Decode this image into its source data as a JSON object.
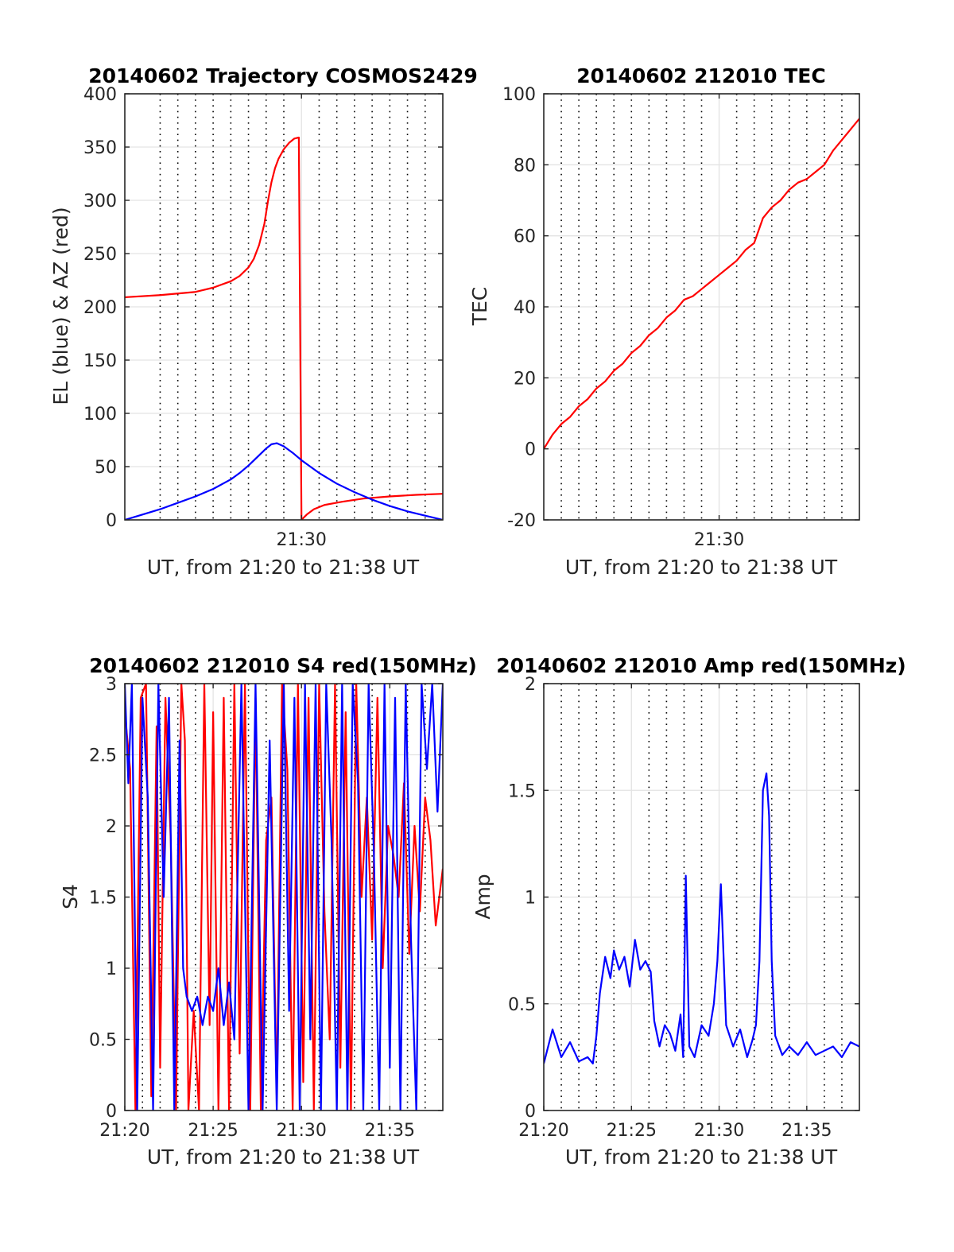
{
  "figure": {
    "background": "#ffffff",
    "colors": {
      "el": "#0000ff",
      "az": "#ff0000",
      "tec": "#ff0000",
      "red": "#ff0000",
      "blue": "#0000ff"
    }
  },
  "chart_data": [
    {
      "id": "trajectory",
      "type": "line",
      "title": "20140602 Trajectory COSMOS2429",
      "xlabel": "UT, from 21:20 to 21:38 UT",
      "ylabel": "EL (blue) & AZ (red)",
      "x_unit": "minutes after 21:20 UT",
      "xlim": [
        0,
        18
      ],
      "ylim": [
        0,
        400
      ],
      "yticks": [
        0,
        50,
        100,
        150,
        200,
        250,
        300,
        350,
        400
      ],
      "xticks": [
        {
          "x": 10,
          "label": "21:30"
        }
      ],
      "minor_dotted_x": [
        2,
        3,
        4,
        5,
        6,
        7,
        8,
        9,
        11,
        12,
        13,
        14,
        15,
        16,
        17
      ],
      "grid": true,
      "series": [
        {
          "key": "az",
          "color": "#ff0000",
          "x": [
            0,
            2,
            4,
            5,
            6,
            6.5,
            7,
            7.3,
            7.6,
            7.9,
            8.1,
            8.3,
            8.5,
            8.7,
            9.0,
            9.3,
            9.6,
            9.85,
            10.0,
            10.3,
            10.7,
            11.3,
            12.3,
            13.5,
            15,
            16.5,
            18
          ],
          "y": [
            209,
            211,
            214,
            218,
            224,
            229,
            237,
            245,
            258,
            278,
            299,
            317,
            330,
            339,
            348,
            354,
            358,
            359,
            0,
            5,
            10,
            14,
            17,
            20,
            22,
            23.5,
            24.5
          ]
        },
        {
          "key": "el",
          "color": "#0000ff",
          "x": [
            0,
            1,
            2,
            3,
            4,
            5,
            6,
            6.5,
            7,
            7.5,
            8,
            8.3,
            8.6,
            9,
            9.5,
            10,
            10.5,
            11,
            12,
            13,
            14,
            15,
            16,
            17,
            18
          ],
          "y": [
            0,
            5,
            10,
            16,
            22,
            29,
            38,
            44,
            51,
            59,
            67,
            71,
            72,
            69,
            63,
            56,
            50,
            44,
            34,
            26,
            19,
            13,
            8,
            4,
            0
          ]
        }
      ]
    },
    {
      "id": "tec",
      "type": "line",
      "title": "20140602 212010 TEC",
      "xlabel": "UT, from 21:20 to 21:38 UT",
      "ylabel": "TEC",
      "x_unit": "minutes after 21:20 UT",
      "xlim": [
        0,
        18
      ],
      "ylim": [
        -20,
        100
      ],
      "yticks": [
        -20,
        0,
        20,
        40,
        60,
        80,
        100
      ],
      "xticks": [
        {
          "x": 10,
          "label": "21:30"
        }
      ],
      "minor_dotted_x": [
        1,
        2,
        3,
        4,
        5,
        6,
        7,
        8,
        9,
        11,
        12,
        13,
        14,
        15,
        16,
        17
      ],
      "grid": true,
      "series": [
        {
          "key": "tec",
          "color": "#ff0000",
          "x": [
            0,
            0.5,
            1,
            1.5,
            2,
            2.5,
            3,
            3.5,
            4,
            4.5,
            5,
            5.5,
            6,
            6.5,
            7,
            7.5,
            8,
            8.5,
            9,
            9.5,
            10,
            10.5,
            11,
            11.5,
            12,
            12.5,
            13,
            13.5,
            14,
            14.5,
            15,
            15.5,
            16,
            16.5,
            17,
            17.5,
            18
          ],
          "y": [
            0,
            4,
            7,
            9,
            12,
            14,
            17,
            19,
            22,
            24,
            27,
            29,
            32,
            34,
            37,
            39,
            42,
            43,
            45,
            47,
            49,
            51,
            53,
            56,
            58,
            65,
            68,
            70,
            73,
            75,
            76,
            78,
            80,
            84,
            87,
            90,
            93
          ]
        }
      ]
    },
    {
      "id": "s4",
      "type": "line",
      "title": "20140602 212010 S4 red(150MHz)",
      "xlabel": "UT, from 21:20 to 21:38 UT",
      "ylabel": "S4",
      "x_unit": "minutes after 21:20 UT",
      "xlim": [
        0,
        18
      ],
      "ylim": [
        0,
        3
      ],
      "yticks": [
        0,
        0.5,
        1,
        1.5,
        2,
        2.5,
        3
      ],
      "xticks": [
        {
          "x": 0,
          "label": "21:20"
        },
        {
          "x": 5,
          "label": "21:25"
        },
        {
          "x": 10,
          "label": "21:30"
        },
        {
          "x": 15,
          "label": "21:35"
        }
      ],
      "minor_dotted_x": [
        1,
        2,
        3,
        4,
        6,
        7,
        8,
        9,
        11,
        12,
        13,
        14,
        16,
        17
      ],
      "grid": true,
      "series": [
        {
          "key": "s4_red",
          "color": "#ff0000",
          "x": [
            0,
            0.3,
            0.6,
            0.9,
            1.2,
            1.5,
            1.8,
            2.0,
            2.3,
            2.6,
            2.9,
            3.2,
            3.4,
            3.6,
            3.9,
            4.2,
            4.5,
            4.8,
            5.0,
            5.3,
            5.6,
            5.9,
            6.2,
            6.5,
            6.8,
            7.1,
            7.4,
            7.7,
            8.0,
            8.3,
            8.6,
            8.9,
            9.2,
            9.5,
            9.8,
            10.1,
            10.4,
            10.7,
            11.0,
            11.3,
            11.6,
            11.9,
            12.2,
            12.5,
            12.8,
            13.1,
            13.4,
            13.7,
            14.0,
            14.3,
            14.6,
            14.9,
            15.2,
            15.5,
            15.8,
            16.1,
            16.4,
            16.7,
            17.0,
            17.3,
            17.6,
            18
          ],
          "y": [
            2.8,
            2.4,
            0.0,
            2.9,
            3.0,
            0.1,
            2.7,
            0.3,
            2.9,
            1.9,
            0.0,
            3.0,
            2.6,
            0.0,
            0.7,
            0.0,
            3.0,
            0.6,
            2.8,
            0.0,
            2.9,
            0.0,
            3.0,
            0.4,
            3.0,
            0.0,
            2.9,
            0.0,
            1.9,
            2.2,
            0.1,
            3.0,
            2.4,
            0.0,
            3.0,
            0.2,
            2.9,
            0.0,
            3.0,
            1.4,
            0.5,
            3.0,
            0.3,
            2.8,
            0.0,
            3.0,
            1.5,
            2.2,
            1.2,
            2.9,
            1.0,
            2.0,
            1.8,
            1.5,
            2.3,
            1.1,
            2.0,
            1.4,
            2.2,
            1.9,
            1.3,
            1.7
          ]
        },
        {
          "key": "s4_blue",
          "color": "#0000ff",
          "x": [
            0,
            0.2,
            0.4,
            0.7,
            1.0,
            1.3,
            1.6,
            1.9,
            2.2,
            2.5,
            2.8,
            3.1,
            3.3,
            3.5,
            3.8,
            4.1,
            4.4,
            4.7,
            5.0,
            5.3,
            5.6,
            5.9,
            6.2,
            6.6,
            7.0,
            7.4,
            7.8,
            8.2,
            8.6,
            9.0,
            9.3,
            9.6,
            9.9,
            10.2,
            10.5,
            10.8,
            11.1,
            11.4,
            11.7,
            12.0,
            12.3,
            12.6,
            12.9,
            13.2,
            13.5,
            13.8,
            14.1,
            14.4,
            14.7,
            15.0,
            15.3,
            15.6,
            15.9,
            16.2,
            16.5,
            16.8,
            17.1,
            17.4,
            17.7,
            18
          ],
          "y": [
            3.0,
            2.3,
            3.0,
            0.0,
            2.9,
            2.2,
            0.0,
            3.0,
            1.5,
            2.9,
            0.0,
            2.6,
            1.0,
            0.8,
            0.7,
            0.8,
            0.6,
            0.8,
            0.7,
            1.0,
            0.6,
            0.9,
            0.5,
            3.0,
            0.0,
            3.0,
            0.0,
            2.6,
            0.0,
            3.0,
            0.7,
            2.9,
            0.0,
            3.0,
            0.5,
            3.0,
            0.0,
            3.0,
            1.9,
            0.0,
            3.0,
            0.0,
            3.0,
            2.3,
            0.0,
            3.0,
            1.8,
            0.0,
            3.0,
            0.3,
            2.9,
            0.0,
            3.0,
            1.2,
            0.0,
            3.0,
            2.4,
            3.0,
            2.1,
            3.0
          ]
        }
      ]
    },
    {
      "id": "amp",
      "type": "line",
      "title": "20140602 212010 Amp red(150MHz)",
      "xlabel": "UT, from 21:20 to 21:38 UT",
      "ylabel": "Amp",
      "x_unit": "minutes after 21:20 UT",
      "xlim": [
        0,
        18
      ],
      "ylim": [
        0,
        2
      ],
      "yticks": [
        0,
        0.5,
        1,
        1.5,
        2
      ],
      "xticks": [
        {
          "x": 0,
          "label": "21:20"
        },
        {
          "x": 5,
          "label": "21:25"
        },
        {
          "x": 10,
          "label": "21:30"
        },
        {
          "x": 15,
          "label": "21:35"
        }
      ],
      "minor_dotted_x": [
        1,
        2,
        3,
        4,
        6,
        7,
        8,
        9,
        11,
        12,
        13,
        14,
        16,
        17
      ],
      "grid": true,
      "series": [
        {
          "key": "amp_blue",
          "color": "#0000ff",
          "x": [
            0,
            0.5,
            1,
            1.5,
            2,
            2.5,
            2.8,
            3.0,
            3.2,
            3.5,
            3.8,
            4.0,
            4.3,
            4.6,
            4.9,
            5.2,
            5.5,
            5.8,
            6.1,
            6.3,
            6.6,
            6.9,
            7.2,
            7.5,
            7.8,
            7.95,
            8.1,
            8.3,
            8.6,
            9.0,
            9.4,
            9.7,
            9.9,
            10.1,
            10.4,
            10.8,
            11.2,
            11.6,
            11.9,
            12.1,
            12.3,
            12.5,
            12.7,
            12.85,
            13.0,
            13.2,
            13.6,
            14.0,
            14.5,
            15.0,
            15.5,
            16.0,
            16.5,
            17.0,
            17.5,
            18
          ],
          "y": [
            0.22,
            0.38,
            0.25,
            0.32,
            0.23,
            0.25,
            0.22,
            0.35,
            0.55,
            0.72,
            0.62,
            0.75,
            0.66,
            0.72,
            0.58,
            0.8,
            0.66,
            0.7,
            0.65,
            0.42,
            0.3,
            0.4,
            0.36,
            0.28,
            0.45,
            0.25,
            1.1,
            0.3,
            0.25,
            0.4,
            0.35,
            0.5,
            0.7,
            1.06,
            0.4,
            0.3,
            0.38,
            0.25,
            0.33,
            0.4,
            0.7,
            1.5,
            1.58,
            1.38,
            0.7,
            0.35,
            0.26,
            0.3,
            0.26,
            0.32,
            0.26,
            0.28,
            0.3,
            0.25,
            0.32,
            0.3
          ]
        }
      ]
    }
  ]
}
